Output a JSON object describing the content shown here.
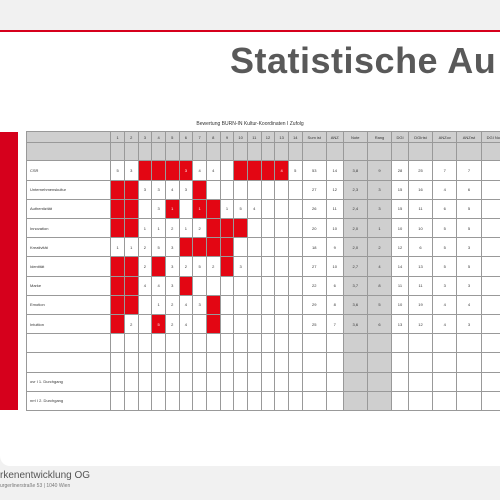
{
  "title": "Statistische Au",
  "table_caption": "Bewertung BURN-IN Kultur-Koordinaten I Zufolg",
  "columns": [
    "1",
    "2",
    "3",
    "4",
    "5",
    "6",
    "7",
    "8",
    "9",
    "10",
    "11",
    "12",
    "13",
    "14",
    "Sum ist",
    "ANZ",
    "Note",
    "Rang",
    "DGI",
    "DGIrist",
    "ANZov",
    "ANZrst",
    "DGI No"
  ],
  "rows": [
    {
      "label": "CSR",
      "cells": [
        "5",
        "3",
        "",
        "",
        "",
        "3",
        "4",
        "4",
        "",
        "",
        "",
        "",
        "4",
        "5",
        "53",
        "14",
        "3,8",
        "9",
        "28",
        "25",
        "7",
        "7"
      ],
      "red": [
        3,
        4,
        5,
        6,
        10,
        11,
        12,
        13
      ]
    },
    {
      "label": "Unternehmenskultur",
      "cells": [
        "",
        "",
        "3",
        "3",
        "4",
        "3",
        "",
        "",
        "",
        "",
        "",
        "",
        "",
        "",
        "27",
        "12",
        "2,3",
        "3",
        "15",
        "16",
        "4",
        "6"
      ],
      "red": [
        1,
        2,
        7
      ]
    },
    {
      "label": "Authentizität",
      "cells": [
        "",
        "",
        "",
        "3",
        "1",
        "",
        "1",
        "",
        "1",
        "5",
        "4",
        "",
        "",
        "",
        "26",
        "11",
        "2,4",
        "3",
        "15",
        "11",
        "6",
        "5"
      ],
      "red": [
        1,
        2,
        5,
        7,
        8
      ]
    },
    {
      "label": "Innovation",
      "cells": [
        "",
        "",
        "1",
        "1",
        "2",
        "1",
        "2",
        "",
        "",
        "",
        "",
        "",
        "",
        "",
        "20",
        "10",
        "2,0",
        "1",
        "10",
        "10",
        "5",
        "5"
      ],
      "red": [
        1,
        2,
        8,
        9,
        10
      ]
    },
    {
      "label": "Kreativität",
      "cells": [
        "1",
        "1",
        "2",
        "5",
        "3",
        "",
        "",
        "",
        "",
        "",
        "",
        "",
        "",
        "",
        "18",
        "9",
        "2,0",
        "2",
        "12",
        "6",
        "5",
        "3"
      ],
      "red": [
        6,
        7,
        8,
        9
      ]
    },
    {
      "label": "Identität",
      "cells": [
        "",
        "",
        "2",
        "",
        "3",
        "2",
        "5",
        "2",
        "",
        "3",
        "",
        "",
        "",
        "",
        "27",
        "10",
        "2,7",
        "4",
        "14",
        "13",
        "5",
        "5"
      ],
      "red": [
        1,
        2,
        4,
        9
      ]
    },
    {
      "label": "Marke",
      "cells": [
        "",
        "",
        "4",
        "4",
        "3",
        "",
        "",
        "",
        "",
        "",
        "",
        "",
        "",
        "",
        "22",
        "6",
        "3,7",
        "8",
        "11",
        "11",
        "3",
        "3"
      ],
      "red": [
        1,
        2,
        6
      ]
    },
    {
      "label": "Emotion",
      "cells": [
        "",
        "",
        "",
        "1",
        "2",
        "4",
        "3",
        "",
        "",
        "",
        "",
        "",
        "",
        "",
        "29",
        "8",
        "3,6",
        "5",
        "10",
        "19",
        "4",
        "4"
      ],
      "red": [
        1,
        2,
        8
      ]
    },
    {
      "label": "Intuition",
      "cells": [
        "",
        "2",
        "",
        "5",
        "2",
        "4",
        "",
        "",
        "",
        "",
        "",
        "",
        "",
        "",
        "25",
        "7",
        "3,6",
        "6",
        "13",
        "12",
        "4",
        "3"
      ],
      "red": [
        1,
        4,
        8
      ]
    },
    {
      "label": "",
      "cells": [],
      "red": []
    },
    {
      "label": "",
      "cells": [],
      "red": []
    },
    {
      "label": "ovr I 1. Durchgang",
      "cells": [],
      "red": []
    },
    {
      "label": "nrrl I 2. Durchgang",
      "cells": [],
      "red": []
    }
  ],
  "footer_company": "rkenentwicklung OG",
  "footer_address": "urgerlinerstraße 53 | 1040 Wien"
}
